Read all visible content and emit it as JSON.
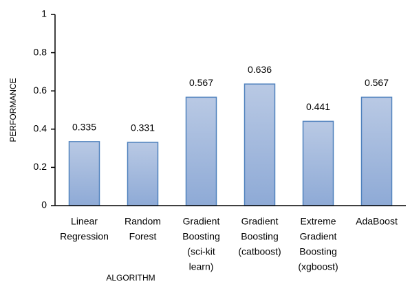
{
  "chart_data": {
    "type": "bar",
    "x_label": "ALGORITHM",
    "y_label": "PERFORMANCE",
    "categories": [
      [
        "Linear",
        "Regression"
      ],
      [
        "Random",
        "Forest"
      ],
      [
        "Gradient",
        "Boosting",
        "(sci-kit",
        "learn)"
      ],
      [
        "Gradient",
        "Boosting",
        "(catboost)"
      ],
      [
        "Extreme",
        "Gradient",
        "Boosting",
        "(xgboost)"
      ],
      [
        "AdaBoost"
      ]
    ],
    "values": [
      0.335,
      0.331,
      0.567,
      0.636,
      0.441,
      0.567
    ],
    "color": "#4f81bd",
    "ylim": [
      0,
      1
    ],
    "yticks": [
      0,
      0.2,
      0.4,
      0.6,
      0.8,
      1
    ],
    "grid": false
  }
}
